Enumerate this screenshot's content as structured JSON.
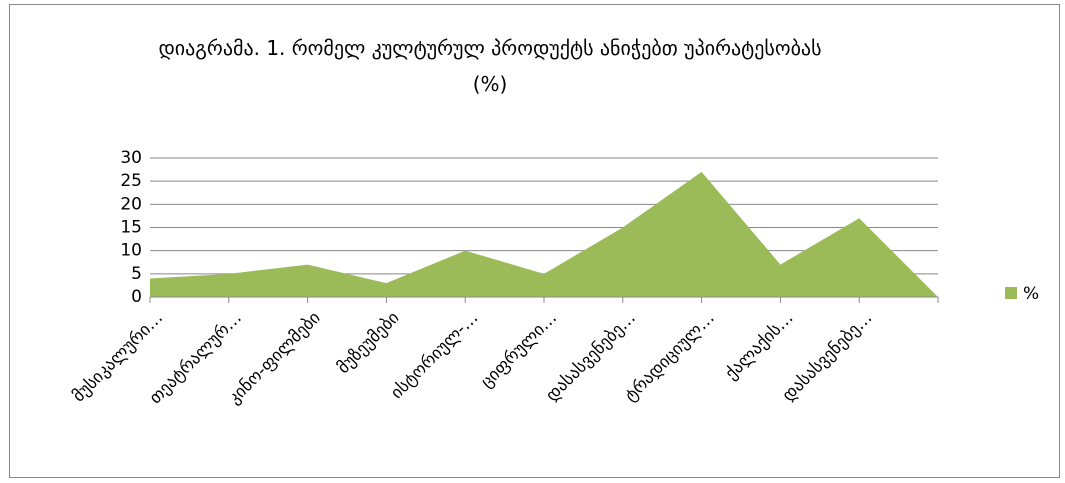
{
  "chart_data": {
    "type": "area",
    "title": "დიაგრამა. 1. რომელ კულტურულ პროდუქტს ანიჭებთ უპირატესობას  (%)",
    "categories": [
      "მუსიკალური…",
      "თეატრალურ…",
      "კინო-ფილმები",
      "მუზეუმები",
      "ისტორიულ-…",
      "ციფრული…",
      "დასასვენებე…",
      "ტრადიციულ…",
      "ქალაქის…",
      "დასასვენებე…",
      null
    ],
    "series": [
      {
        "name": "%",
        "color": "#9bbb59",
        "values": [
          4,
          5,
          7,
          3,
          10,
          5,
          15,
          27,
          7,
          17,
          0
        ]
      }
    ],
    "ylim": [
      0,
      30
    ],
    "yticks": [
      0,
      5,
      10,
      15,
      20,
      25,
      30
    ],
    "grid": true,
    "legend": "right"
  }
}
